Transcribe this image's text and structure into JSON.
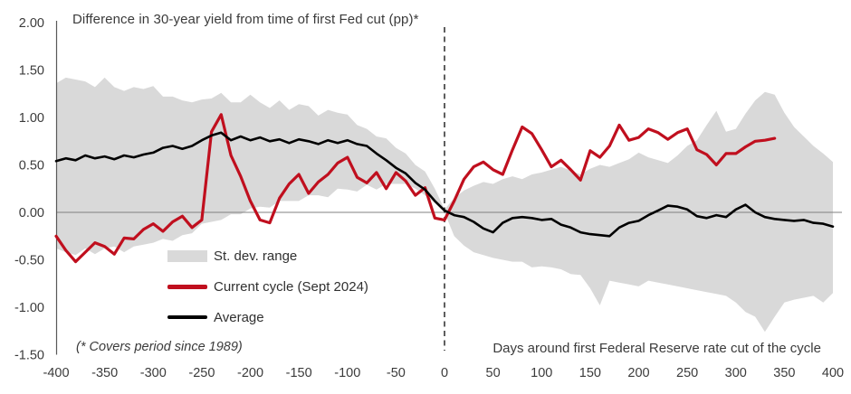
{
  "chart_data": {
    "type": "line",
    "title": "Difference in 30-year yield from time of first Fed cut (pp)*",
    "xlabel": "Days around first Federal Reserve rate cut of the cycle",
    "footnote": "(* Covers period since 1989)",
    "xlim": [
      -400,
      400
    ],
    "ylim": [
      -1.5,
      2.0
    ],
    "xticks": [
      -400,
      -350,
      -300,
      -250,
      -200,
      -150,
      -100,
      -50,
      0,
      50,
      100,
      150,
      200,
      250,
      300,
      350,
      400
    ],
    "ytick_labels": [
      "2.00",
      "1.50",
      "1.00",
      "0.50",
      "0.00",
      "-0.50",
      "-1.00",
      "-1.50"
    ],
    "ytick_values": [
      2.0,
      1.5,
      1.0,
      0.5,
      0.0,
      -0.5,
      -1.0,
      -1.5
    ],
    "grid": "horizontal zero line only",
    "event_line_x": 0,
    "legend_position": "inside lower-left",
    "colors": {
      "band": "#d9d9d9",
      "current_cycle": "#c00f1e",
      "average": "#000000",
      "zero_line": "#808080",
      "axis": "#595959",
      "text": "#3b3b3b",
      "event_line": "#1a1a1a"
    },
    "legend": [
      {
        "label": "St. dev. range",
        "type": "band",
        "color": "#d9d9d9"
      },
      {
        "label": "Current cycle (Sept 2024)",
        "type": "line",
        "color": "#c00f1e"
      },
      {
        "label": "Average",
        "type": "line",
        "color": "#000000"
      }
    ],
    "band": {
      "name": "St. dev. range",
      "start": -400,
      "step": 10,
      "upper": [
        1.36,
        1.42,
        1.4,
        1.38,
        1.32,
        1.42,
        1.32,
        1.28,
        1.32,
        1.3,
        1.33,
        1.22,
        1.22,
        1.18,
        1.16,
        1.19,
        1.2,
        1.26,
        1.16,
        1.16,
        1.24,
        1.16,
        1.1,
        1.18,
        1.08,
        1.14,
        1.12,
        1.02,
        1.08,
        1.05,
        1.03,
        0.92,
        0.88,
        0.8,
        0.78,
        0.68,
        0.62,
        0.5,
        0.43,
        0.25,
        0.03,
        0.15,
        0.23,
        0.28,
        0.32,
        0.3,
        0.35,
        0.38,
        0.35,
        0.4,
        0.42,
        0.45,
        0.48,
        0.44,
        0.4,
        0.46,
        0.5,
        0.48,
        0.52,
        0.56,
        0.63,
        0.58,
        0.55,
        0.52,
        0.6,
        0.7,
        0.76,
        0.92,
        1.07,
        0.85,
        0.88,
        1.04,
        1.18,
        1.27,
        1.24,
        1.05,
        0.9,
        0.8,
        0.7,
        0.62,
        0.53
      ],
      "lower": [
        -0.38,
        -0.42,
        -0.45,
        -0.38,
        -0.44,
        -0.38,
        -0.36,
        -0.42,
        -0.36,
        -0.34,
        -0.32,
        -0.28,
        -0.3,
        -0.24,
        -0.22,
        -0.12,
        -0.1,
        -0.08,
        -0.02,
        -0.02,
        0.04,
        0.06,
        0.05,
        0.12,
        0.12,
        0.12,
        0.18,
        0.18,
        0.16,
        0.25,
        0.24,
        0.22,
        0.29,
        0.24,
        0.3,
        0.3,
        0.3,
        0.25,
        0.18,
        0.1,
        0.0,
        -0.25,
        -0.35,
        -0.42,
        -0.45,
        -0.48,
        -0.5,
        -0.52,
        -0.52,
        -0.58,
        -0.57,
        -0.58,
        -0.6,
        -0.65,
        -0.66,
        -0.8,
        -0.98,
        -0.72,
        -0.74,
        -0.76,
        -0.78,
        -0.72,
        -0.74,
        -0.76,
        -0.78,
        -0.8,
        -0.82,
        -0.84,
        -0.86,
        -0.88,
        -0.95,
        -1.05,
        -1.1,
        -1.26,
        -1.1,
        -0.95,
        -0.92,
        -0.9,
        -0.88,
        -0.95,
        -0.85
      ]
    },
    "series": [
      {
        "name": "Current cycle (Sept 2024)",
        "color": "#c00f1e",
        "start": -400,
        "step": 10,
        "values": [
          -0.25,
          -0.4,
          -0.52,
          -0.42,
          -0.32,
          -0.36,
          -0.44,
          -0.27,
          -0.28,
          -0.18,
          -0.12,
          -0.2,
          -0.1,
          -0.04,
          -0.16,
          -0.08,
          0.85,
          1.03,
          0.6,
          0.38,
          0.12,
          -0.08,
          -0.11,
          0.15,
          0.3,
          0.4,
          0.2,
          0.32,
          0.4,
          0.52,
          0.58,
          0.37,
          0.31,
          0.42,
          0.25,
          0.42,
          0.33,
          0.18,
          0.26,
          -0.06,
          -0.08,
          0.12,
          0.35,
          0.48,
          0.53,
          0.45,
          0.4,
          0.66,
          0.9,
          0.83,
          0.66,
          0.48,
          0.55,
          0.45,
          0.34,
          0.65,
          0.58,
          0.7,
          0.92,
          0.76,
          0.79,
          0.88,
          0.84,
          0.77,
          0.84,
          0.88,
          0.66,
          0.61,
          0.5,
          0.62,
          0.62,
          0.69,
          0.75,
          0.76,
          0.78
        ]
      },
      {
        "name": "Average",
        "color": "#000000",
        "start": -400,
        "step": 10,
        "values": [
          0.54,
          0.57,
          0.55,
          0.6,
          0.57,
          0.59,
          0.56,
          0.6,
          0.58,
          0.61,
          0.63,
          0.68,
          0.7,
          0.67,
          0.7,
          0.76,
          0.81,
          0.84,
          0.76,
          0.8,
          0.76,
          0.79,
          0.75,
          0.77,
          0.73,
          0.77,
          0.75,
          0.72,
          0.76,
          0.73,
          0.76,
          0.72,
          0.7,
          0.62,
          0.55,
          0.47,
          0.41,
          0.31,
          0.24,
          0.12,
          0.02,
          -0.03,
          -0.05,
          -0.1,
          -0.17,
          -0.21,
          -0.11,
          -0.06,
          -0.05,
          -0.06,
          -0.08,
          -0.07,
          -0.13,
          -0.16,
          -0.21,
          -0.23,
          -0.24,
          -0.25,
          -0.16,
          -0.11,
          -0.09,
          -0.03,
          0.02,
          0.07,
          0.06,
          0.03,
          -0.04,
          -0.06,
          -0.03,
          -0.05,
          0.03,
          0.08,
          0.0,
          -0.05,
          -0.07,
          -0.08,
          -0.09,
          -0.08,
          -0.11,
          -0.12,
          -0.15
        ]
      }
    ]
  }
}
